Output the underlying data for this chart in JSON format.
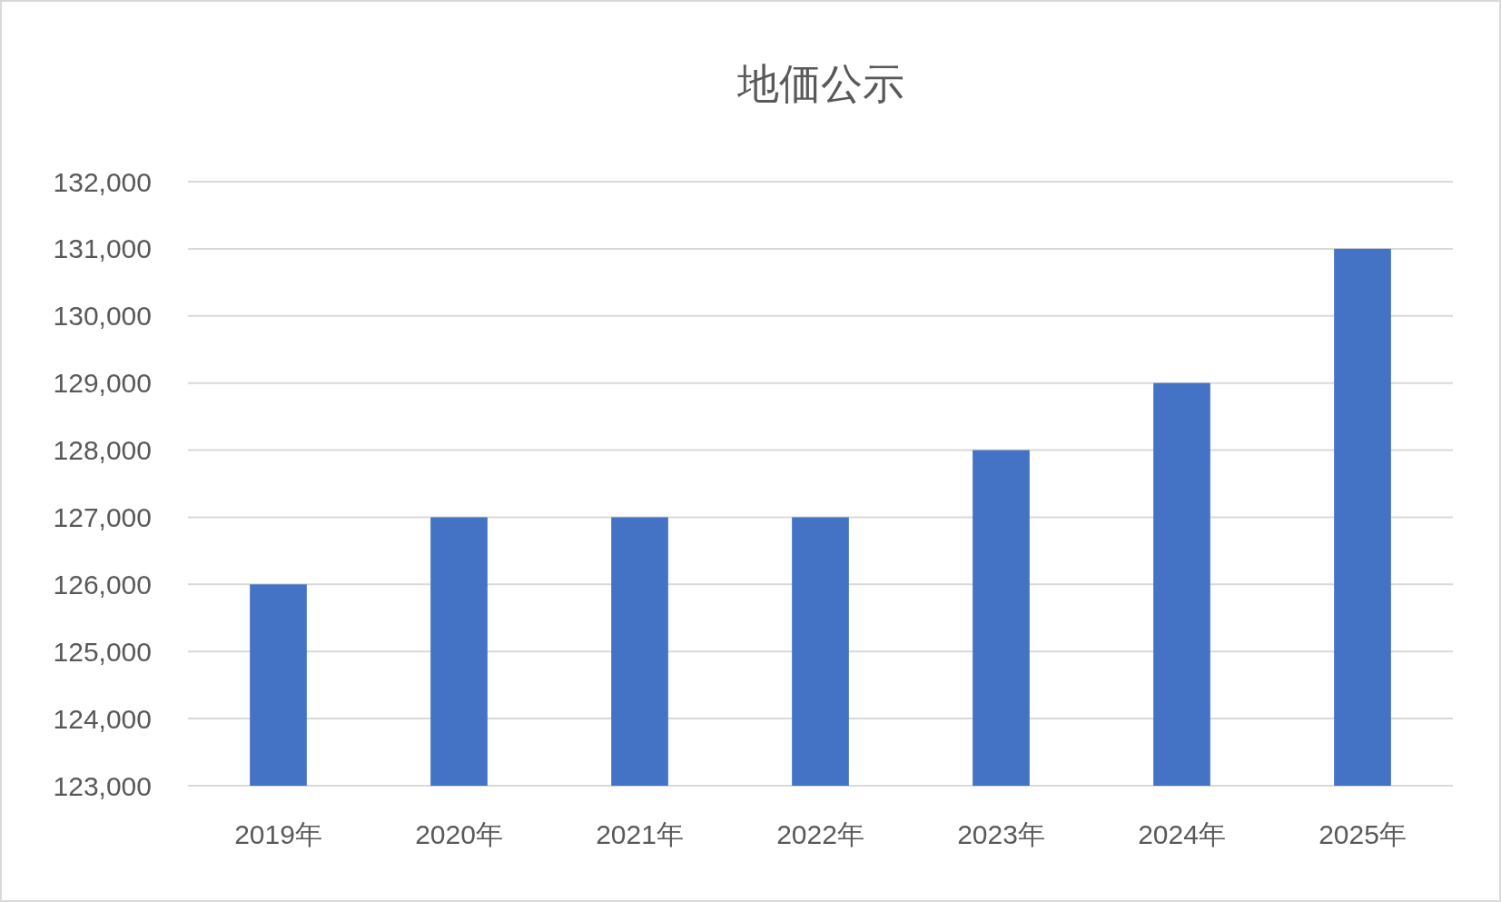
{
  "chart_data": {
    "type": "bar",
    "title": "地価公示",
    "categories": [
      "2019年",
      "2020年",
      "2021年",
      "2022年",
      "2023年",
      "2024年",
      "2025年"
    ],
    "values": [
      126000,
      127000,
      127000,
      127000,
      128000,
      129000,
      131000
    ],
    "color": "#4472c4",
    "ylim": [
      123000,
      132000
    ],
    "yticks": [
      {
        "value": 123000,
        "label": "123,000"
      },
      {
        "value": 124000,
        "label": "124,000"
      },
      {
        "value": 125000,
        "label": "125,000"
      },
      {
        "value": 126000,
        "label": "126,000"
      },
      {
        "value": 127000,
        "label": "127,000"
      },
      {
        "value": 128000,
        "label": "128,000"
      },
      {
        "value": 129000,
        "label": "129,000"
      },
      {
        "value": 130000,
        "label": "130,000"
      },
      {
        "value": 131000,
        "label": "131,000"
      },
      {
        "value": 132000,
        "label": "132,000"
      }
    ],
    "grid": "y"
  }
}
